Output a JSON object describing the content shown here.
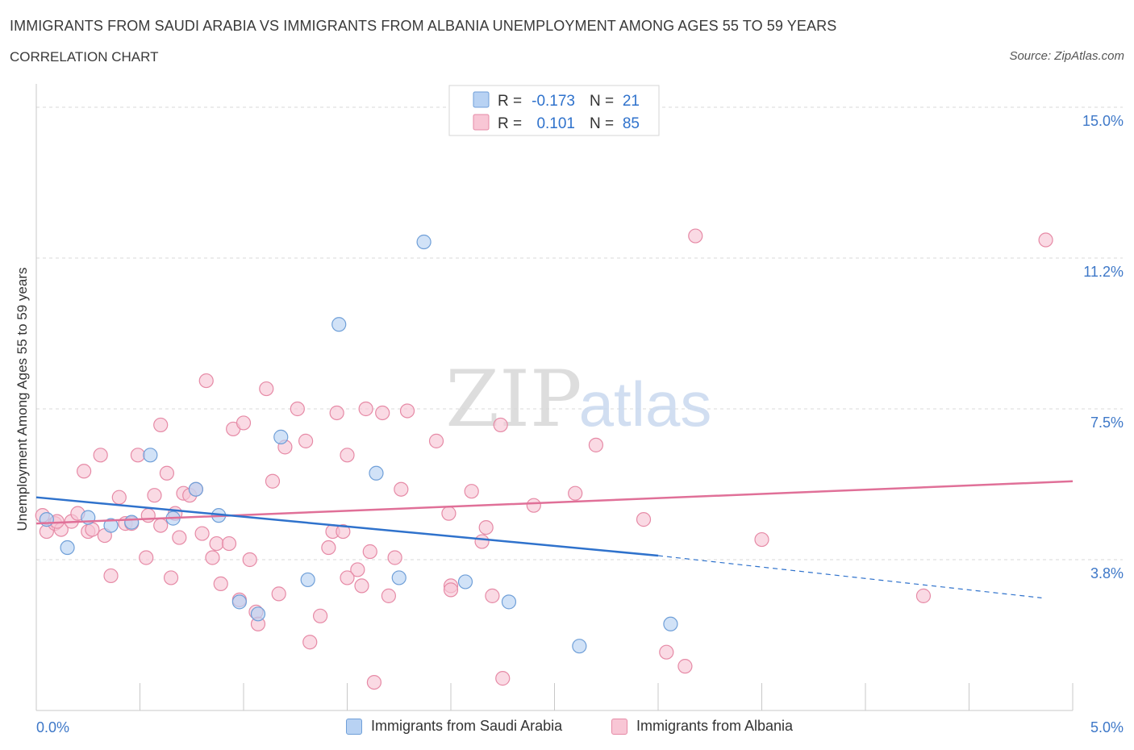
{
  "header": {
    "title": "IMMIGRANTS FROM SAUDI ARABIA VS IMMIGRANTS FROM ALBANIA UNEMPLOYMENT AMONG AGES 55 TO 59 YEARS",
    "subtitle": "CORRELATION CHART",
    "source": "Source: ZipAtlas.com"
  },
  "watermark": {
    "zip": "ZIP",
    "atlas": "atlas"
  },
  "legend_top": {
    "rows": [
      {
        "r_label": "R =",
        "r_value": "-0.173",
        "n_label": "N =",
        "n_value": "21"
      },
      {
        "r_label": "R =",
        "r_value": "0.101",
        "n_label": "N =",
        "n_value": "85"
      }
    ]
  },
  "legend_bottom": {
    "items": [
      {
        "label": "Immigrants from Saudi Arabia"
      },
      {
        "label": "Immigrants from Albania"
      }
    ]
  },
  "colors": {
    "saudi_fill": "#b8d2f3",
    "saudi_stroke": "#6f9fd8",
    "saudi_line": "#2f72cc",
    "albania_fill": "#f8c6d5",
    "albania_stroke": "#e68aa6",
    "albania_line": "#e07098",
    "tick_label": "#3e78c8",
    "grid": "#d9d9d9"
  },
  "chart_data": {
    "type": "scatter",
    "ylabel": "Unemployment Among Ages 55 to 59 years",
    "x_tick_labels": [
      "0.0%",
      "5.0%"
    ],
    "y_tick_labels": [
      "15.0%",
      "11.2%",
      "7.5%",
      "3.8%"
    ],
    "y_ticks": [
      15.0,
      11.25,
      7.5,
      3.75
    ],
    "xlim": [
      0,
      5
    ],
    "ylim": [
      0,
      15.3
    ],
    "grid": true,
    "series": [
      {
        "name": "Immigrants from Saudi Arabia",
        "points": [
          [
            0.05,
            4.75
          ],
          [
            0.15,
            4.05
          ],
          [
            0.25,
            4.8
          ],
          [
            0.36,
            4.6
          ],
          [
            0.46,
            4.68
          ],
          [
            0.55,
            6.35
          ],
          [
            0.66,
            4.78
          ],
          [
            0.77,
            5.5
          ],
          [
            0.88,
            4.85
          ],
          [
            0.98,
            2.7
          ],
          [
            1.07,
            2.4
          ],
          [
            1.18,
            6.8
          ],
          [
            1.31,
            3.25
          ],
          [
            1.46,
            9.6
          ],
          [
            1.64,
            5.9
          ],
          [
            1.75,
            3.3
          ],
          [
            1.87,
            11.65
          ],
          [
            2.07,
            3.2
          ],
          [
            2.28,
            2.7
          ],
          [
            2.62,
            1.6
          ],
          [
            3.06,
            2.15
          ]
        ],
        "trend": {
          "x": [
            0,
            3.0
          ],
          "y": [
            5.3,
            3.85
          ]
        },
        "trend_dashed": {
          "x": [
            3.0,
            4.85
          ],
          "y": [
            3.85,
            2.8
          ]
        }
      },
      {
        "name": "Immigrants from Albania",
        "points": [
          [
            0.03,
            4.85
          ],
          [
            0.05,
            4.45
          ],
          [
            0.09,
            4.65
          ],
          [
            0.12,
            4.5
          ],
          [
            0.17,
            4.7
          ],
          [
            0.2,
            4.9
          ],
          [
            0.23,
            5.95
          ],
          [
            0.25,
            4.45
          ],
          [
            0.27,
            4.5
          ],
          [
            0.31,
            6.35
          ],
          [
            0.33,
            4.35
          ],
          [
            0.36,
            3.35
          ],
          [
            0.4,
            5.3
          ],
          [
            0.43,
            4.65
          ],
          [
            0.46,
            4.65
          ],
          [
            0.49,
            6.35
          ],
          [
            0.53,
            3.8
          ],
          [
            0.54,
            4.85
          ],
          [
            0.57,
            5.35
          ],
          [
            0.6,
            7.1
          ],
          [
            0.63,
            5.9
          ],
          [
            0.65,
            3.3
          ],
          [
            0.67,
            4.9
          ],
          [
            0.69,
            4.3
          ],
          [
            0.71,
            5.4
          ],
          [
            0.74,
            5.35
          ],
          [
            0.77,
            5.5
          ],
          [
            0.8,
            4.4
          ],
          [
            0.82,
            8.2
          ],
          [
            0.85,
            3.8
          ],
          [
            0.87,
            4.15
          ],
          [
            0.89,
            3.15
          ],
          [
            0.93,
            4.15
          ],
          [
            0.95,
            7.0
          ],
          [
            0.98,
            2.75
          ],
          [
            1.0,
            7.15
          ],
          [
            1.03,
            3.75
          ],
          [
            1.06,
            2.45
          ],
          [
            1.07,
            2.15
          ],
          [
            1.11,
            8.0
          ],
          [
            1.14,
            5.7
          ],
          [
            1.17,
            2.9
          ],
          [
            1.2,
            6.55
          ],
          [
            1.26,
            7.5
          ],
          [
            1.3,
            6.7
          ],
          [
            1.32,
            1.7
          ],
          [
            1.37,
            2.35
          ],
          [
            1.41,
            4.05
          ],
          [
            1.43,
            4.45
          ],
          [
            1.45,
            7.4
          ],
          [
            1.48,
            4.45
          ],
          [
            1.5,
            6.35
          ],
          [
            1.55,
            3.5
          ],
          [
            1.57,
            3.1
          ],
          [
            1.59,
            7.5
          ],
          [
            1.61,
            3.95
          ],
          [
            1.63,
            0.7
          ],
          [
            1.67,
            7.4
          ],
          [
            1.7,
            2.85
          ],
          [
            1.73,
            3.8
          ],
          [
            1.76,
            5.5
          ],
          [
            1.79,
            7.45
          ],
          [
            1.93,
            6.7
          ],
          [
            1.99,
            4.9
          ],
          [
            2.0,
            3.1
          ],
          [
            2.1,
            5.45
          ],
          [
            2.15,
            4.2
          ],
          [
            2.17,
            4.55
          ],
          [
            2.2,
            2.85
          ],
          [
            2.24,
            7.1
          ],
          [
            2.25,
            0.8
          ],
          [
            2.4,
            5.1
          ],
          [
            2.6,
            5.4
          ],
          [
            2.7,
            6.6
          ],
          [
            2.93,
            4.75
          ],
          [
            3.04,
            1.45
          ],
          [
            3.13,
            1.1
          ],
          [
            3.18,
            11.8
          ],
          [
            3.5,
            4.25
          ],
          [
            4.28,
            2.85
          ],
          [
            4.87,
            11.7
          ],
          [
            0.1,
            4.7
          ],
          [
            0.6,
            4.6
          ],
          [
            1.5,
            3.3
          ],
          [
            2.0,
            3.0
          ]
        ],
        "trend": {
          "x": [
            0,
            5.0
          ],
          "y": [
            4.65,
            5.7
          ]
        }
      }
    ]
  }
}
